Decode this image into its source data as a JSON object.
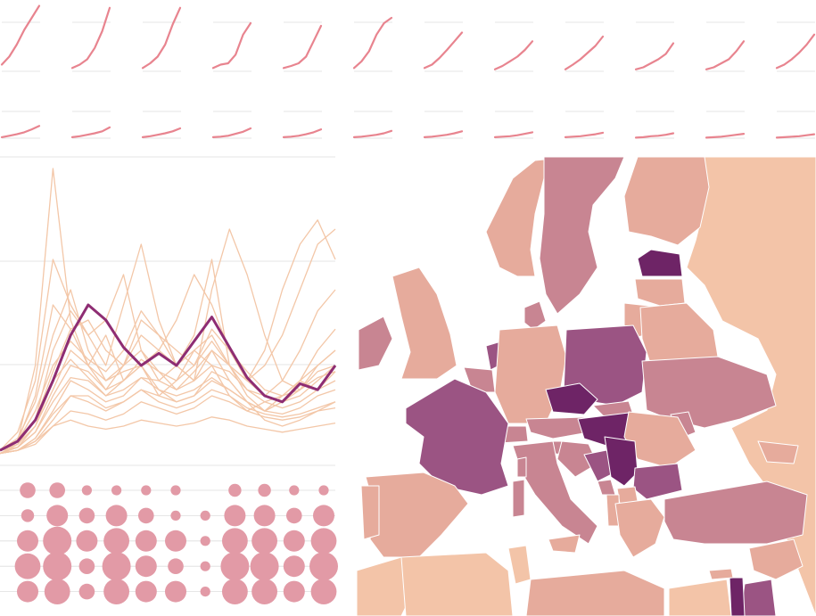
{
  "colors": {
    "background": "#ffffff",
    "grid": "#dddddd",
    "sparkline": "#e8848f",
    "line_light": "#f3c7a8",
    "line_highlight": "#8e2d73",
    "bubble": "#e29aa6",
    "sea": "#ffffff",
    "map_border": "#ffffff",
    "map_scale": [
      "#f3c4a8",
      "#e6ab9c",
      "#c88592",
      "#9b5483",
      "#6e2466"
    ]
  },
  "chart_data": [
    {
      "type": "line",
      "name": "small-multiples-row-1",
      "panels": [
        [
          0.1,
          0.22,
          0.4,
          0.62,
          0.8,
          0.98
        ],
        [
          0.05,
          0.1,
          0.18,
          0.35,
          0.6,
          0.95
        ],
        [
          0.05,
          0.12,
          0.22,
          0.4,
          0.7,
          0.95
        ],
        [
          0.05,
          0.1,
          0.12,
          0.25,
          0.55,
          0.72
        ],
        [
          0.05,
          0.08,
          0.12,
          0.22,
          0.45,
          0.68
        ],
        [
          0.05,
          0.15,
          0.3,
          0.55,
          0.72,
          0.8
        ],
        [
          0.05,
          0.1,
          0.2,
          0.32,
          0.45,
          0.58
        ],
        [
          0.03,
          0.08,
          0.15,
          0.22,
          0.32,
          0.45
        ],
        [
          0.03,
          0.1,
          0.18,
          0.28,
          0.38,
          0.52
        ],
        [
          0.03,
          0.06,
          0.12,
          0.18,
          0.26,
          0.42
        ],
        [
          0.03,
          0.06,
          0.12,
          0.18,
          0.3,
          0.45
        ],
        [
          0.05,
          0.1,
          0.18,
          0.28,
          0.4,
          0.55
        ]
      ]
    },
    {
      "type": "line",
      "name": "small-multiples-row-2",
      "panels": [
        [
          0.02,
          0.05,
          0.08,
          0.12,
          0.18,
          0.25
        ],
        [
          0.02,
          0.04,
          0.07,
          0.1,
          0.14,
          0.22
        ],
        [
          0.02,
          0.04,
          0.07,
          0.1,
          0.14,
          0.2
        ],
        [
          0.02,
          0.03,
          0.05,
          0.09,
          0.13,
          0.2
        ],
        [
          0.02,
          0.03,
          0.05,
          0.08,
          0.12,
          0.18
        ],
        [
          0.02,
          0.03,
          0.05,
          0.07,
          0.1,
          0.15
        ],
        [
          0.02,
          0.03,
          0.05,
          0.07,
          0.1,
          0.14
        ],
        [
          0.02,
          0.03,
          0.04,
          0.06,
          0.09,
          0.12
        ],
        [
          0.02,
          0.03,
          0.04,
          0.06,
          0.08,
          0.11
        ],
        [
          0.01,
          0.02,
          0.04,
          0.05,
          0.07,
          0.1
        ],
        [
          0.01,
          0.02,
          0.03,
          0.05,
          0.07,
          0.09
        ],
        [
          0.01,
          0.02,
          0.03,
          0.04,
          0.06,
          0.08
        ]
      ]
    },
    {
      "type": "line",
      "name": "multi-series-line",
      "ylim": [
        0,
        1
      ],
      "highlight": [
        0.02,
        0.05,
        0.12,
        0.25,
        0.4,
        0.5,
        0.45,
        0.36,
        0.3,
        0.34,
        0.3,
        0.38,
        0.46,
        0.36,
        0.26,
        0.2,
        0.18,
        0.24,
        0.22,
        0.3
      ],
      "background_series": [
        [
          0.02,
          0.05,
          0.3,
          0.95,
          0.45,
          0.3,
          0.4,
          0.25,
          0.3,
          0.2,
          0.25,
          0.35,
          0.3,
          0.2,
          0.15,
          0.18,
          0.2,
          0.25,
          0.3,
          0.35
        ],
        [
          0.02,
          0.08,
          0.25,
          0.65,
          0.5,
          0.4,
          0.45,
          0.6,
          0.35,
          0.25,
          0.3,
          0.4,
          0.65,
          0.3,
          0.2,
          0.15,
          0.18,
          0.22,
          0.28,
          0.3
        ],
        [
          0.01,
          0.04,
          0.12,
          0.35,
          0.48,
          0.4,
          0.3,
          0.5,
          0.7,
          0.45,
          0.3,
          0.25,
          0.35,
          0.25,
          0.18,
          0.15,
          0.2,
          0.25,
          0.22,
          0.28
        ],
        [
          0.02,
          0.06,
          0.18,
          0.4,
          0.55,
          0.35,
          0.25,
          0.3,
          0.45,
          0.4,
          0.3,
          0.25,
          0.55,
          0.75,
          0.6,
          0.4,
          0.25,
          0.22,
          0.3,
          0.35
        ],
        [
          0.02,
          0.03,
          0.08,
          0.2,
          0.3,
          0.28,
          0.22,
          0.3,
          0.4,
          0.35,
          0.3,
          0.35,
          0.4,
          0.3,
          0.25,
          0.35,
          0.55,
          0.7,
          0.78,
          0.65
        ],
        [
          0.01,
          0.02,
          0.06,
          0.15,
          0.25,
          0.22,
          0.18,
          0.2,
          0.26,
          0.25,
          0.22,
          0.28,
          0.35,
          0.3,
          0.25,
          0.3,
          0.4,
          0.55,
          0.7,
          0.75
        ],
        [
          0.02,
          0.05,
          0.15,
          0.3,
          0.38,
          0.32,
          0.28,
          0.35,
          0.48,
          0.4,
          0.35,
          0.3,
          0.38,
          0.3,
          0.22,
          0.2,
          0.25,
          0.35,
          0.48,
          0.55
        ],
        [
          0.01,
          0.03,
          0.1,
          0.22,
          0.35,
          0.3,
          0.25,
          0.28,
          0.3,
          0.35,
          0.45,
          0.6,
          0.5,
          0.35,
          0.25,
          0.2,
          0.18,
          0.2,
          0.25,
          0.3
        ],
        [
          0.02,
          0.04,
          0.12,
          0.28,
          0.42,
          0.45,
          0.35,
          0.3,
          0.35,
          0.28,
          0.22,
          0.25,
          0.3,
          0.28,
          0.22,
          0.18,
          0.16,
          0.18,
          0.22,
          0.25
        ],
        [
          0.01,
          0.02,
          0.05,
          0.12,
          0.2,
          0.18,
          0.15,
          0.18,
          0.22,
          0.2,
          0.18,
          0.2,
          0.25,
          0.22,
          0.18,
          0.15,
          0.18,
          0.25,
          0.35,
          0.42
        ],
        [
          0.02,
          0.05,
          0.2,
          0.5,
          0.42,
          0.3,
          0.22,
          0.25,
          0.3,
          0.22,
          0.18,
          0.2,
          0.28,
          0.25,
          0.18,
          0.12,
          0.1,
          0.12,
          0.15,
          0.18
        ],
        [
          0.01,
          0.03,
          0.08,
          0.18,
          0.26,
          0.25,
          0.2,
          0.25,
          0.32,
          0.28,
          0.25,
          0.3,
          0.42,
          0.35,
          0.28,
          0.22,
          0.2,
          0.22,
          0.26,
          0.28
        ],
        [
          0.01,
          0.02,
          0.06,
          0.14,
          0.2,
          0.2,
          0.16,
          0.18,
          0.22,
          0.18,
          0.16,
          0.18,
          0.22,
          0.2,
          0.16,
          0.14,
          0.13,
          0.14,
          0.16,
          0.18
        ],
        [
          0.01,
          0.02,
          0.04,
          0.1,
          0.15,
          0.14,
          0.12,
          0.14,
          0.18,
          0.16,
          0.14,
          0.16,
          0.2,
          0.18,
          0.15,
          0.13,
          0.12,
          0.13,
          0.15,
          0.16
        ],
        [
          0.02,
          0.04,
          0.1,
          0.25,
          0.32,
          0.26,
          0.2,
          0.22,
          0.26,
          0.22,
          0.2,
          0.22,
          0.26,
          0.22,
          0.18,
          0.15,
          0.14,
          0.16,
          0.2,
          0.22
        ],
        [
          0.01,
          0.02,
          0.05,
          0.1,
          0.12,
          0.1,
          0.09,
          0.1,
          0.12,
          0.11,
          0.1,
          0.11,
          0.13,
          0.12,
          0.1,
          0.09,
          0.08,
          0.09,
          0.1,
          0.11
        ]
      ]
    },
    {
      "type": "scatter",
      "name": "bubble-grid",
      "rows": 5,
      "cols": 11,
      "sizes": [
        [
          0.55,
          0.55,
          0.35,
          0.35,
          0.35,
          0.35,
          0.0,
          0.45,
          0.45,
          0.35,
          0.35
        ],
        [
          0.45,
          0.75,
          0.55,
          0.75,
          0.55,
          0.35,
          0.35,
          0.75,
          0.75,
          0.55,
          0.75
        ],
        [
          0.75,
          1.0,
          0.75,
          0.9,
          0.75,
          0.75,
          0.35,
          0.9,
          0.9,
          0.75,
          0.9
        ],
        [
          0.9,
          1.0,
          0.55,
          1.0,
          0.75,
          0.55,
          0.35,
          1.0,
          1.0,
          0.75,
          1.0
        ],
        [
          0.75,
          0.9,
          0.55,
          0.9,
          0.75,
          0.75,
          0.35,
          0.9,
          0.9,
          0.75,
          0.9
        ]
      ]
    },
    {
      "type": "map",
      "name": "europe-choropleth",
      "regions": [
        {
          "id": "russia",
          "level": 0
        },
        {
          "id": "norway",
          "level": 1
        },
        {
          "id": "sweden",
          "level": 2
        },
        {
          "id": "finland",
          "level": 1
        },
        {
          "id": "estonia",
          "level": 4
        },
        {
          "id": "latvia",
          "level": 1
        },
        {
          "id": "lithuania",
          "level": 1
        },
        {
          "id": "belarus",
          "level": 1
        },
        {
          "id": "ireland",
          "level": 2
        },
        {
          "id": "uk",
          "level": 1
        },
        {
          "id": "denmark",
          "level": 2
        },
        {
          "id": "netherlands",
          "level": 3
        },
        {
          "id": "belgium",
          "level": 2
        },
        {
          "id": "germany",
          "level": 1
        },
        {
          "id": "poland",
          "level": 3
        },
        {
          "id": "czechia",
          "level": 4
        },
        {
          "id": "slovakia",
          "level": 2
        },
        {
          "id": "austria",
          "level": 2
        },
        {
          "id": "switzerland",
          "level": 2
        },
        {
          "id": "hungary",
          "level": 4
        },
        {
          "id": "france",
          "level": 3
        },
        {
          "id": "ukraine",
          "level": 2
        },
        {
          "id": "moldova",
          "level": 2
        },
        {
          "id": "romania",
          "level": 1
        },
        {
          "id": "slovenia",
          "level": 2
        },
        {
          "id": "croatia",
          "level": 2
        },
        {
          "id": "bosnia",
          "level": 3
        },
        {
          "id": "serbia",
          "level": 4
        },
        {
          "id": "montenegro",
          "level": 2
        },
        {
          "id": "bulgaria",
          "level": 3
        },
        {
          "id": "macedonia",
          "level": 1
        },
        {
          "id": "albania",
          "level": 1
        },
        {
          "id": "greece",
          "level": 1
        },
        {
          "id": "italy",
          "level": 2
        },
        {
          "id": "sardinia",
          "level": 2
        },
        {
          "id": "corsica",
          "level": 2
        },
        {
          "id": "sicily",
          "level": 1
        },
        {
          "id": "spain",
          "level": 1
        },
        {
          "id": "portugal",
          "level": 1
        },
        {
          "id": "turkey",
          "level": 2
        },
        {
          "id": "georgia",
          "level": 1
        },
        {
          "id": "syria",
          "level": 1
        },
        {
          "id": "jordan",
          "level": 3
        },
        {
          "id": "israel",
          "level": 4
        },
        {
          "id": "morocco",
          "level": 0
        },
        {
          "id": "algeria",
          "level": 0
        },
        {
          "id": "tunisia",
          "level": 0
        },
        {
          "id": "libya",
          "level": 1
        },
        {
          "id": "egypt",
          "level": 0
        },
        {
          "id": "cyprus",
          "level": 1
        }
      ]
    }
  ]
}
